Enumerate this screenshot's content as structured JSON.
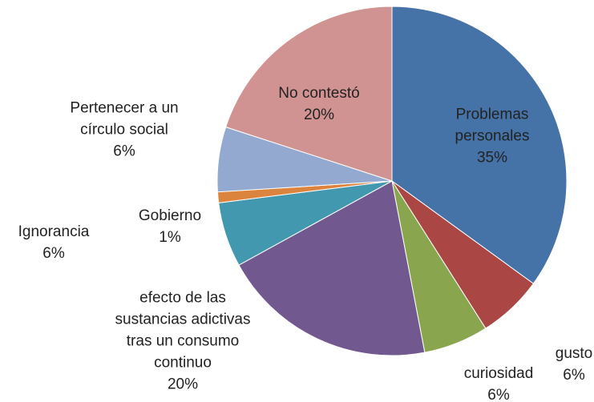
{
  "chart_data": {
    "type": "pie",
    "categories": [
      "Problemas personales",
      "gusto",
      "curiosidad",
      "efecto de las sustancias adictivas tras un consumo continuo",
      "Ignorancia",
      "Gobierno",
      "Pertenecer a un círculo social",
      "No contestó"
    ],
    "values": [
      35,
      6,
      6,
      20,
      6,
      1,
      6,
      20
    ],
    "value_labels": [
      "35%",
      "6%",
      "6%",
      "20%",
      "6%",
      "1%",
      "6%",
      "20%"
    ],
    "colors": [
      "#4572a7",
      "#aa4643",
      "#89a54e",
      "#71588f",
      "#4198af",
      "#db843d",
      "#93a9cf",
      "#d19392"
    ]
  }
}
